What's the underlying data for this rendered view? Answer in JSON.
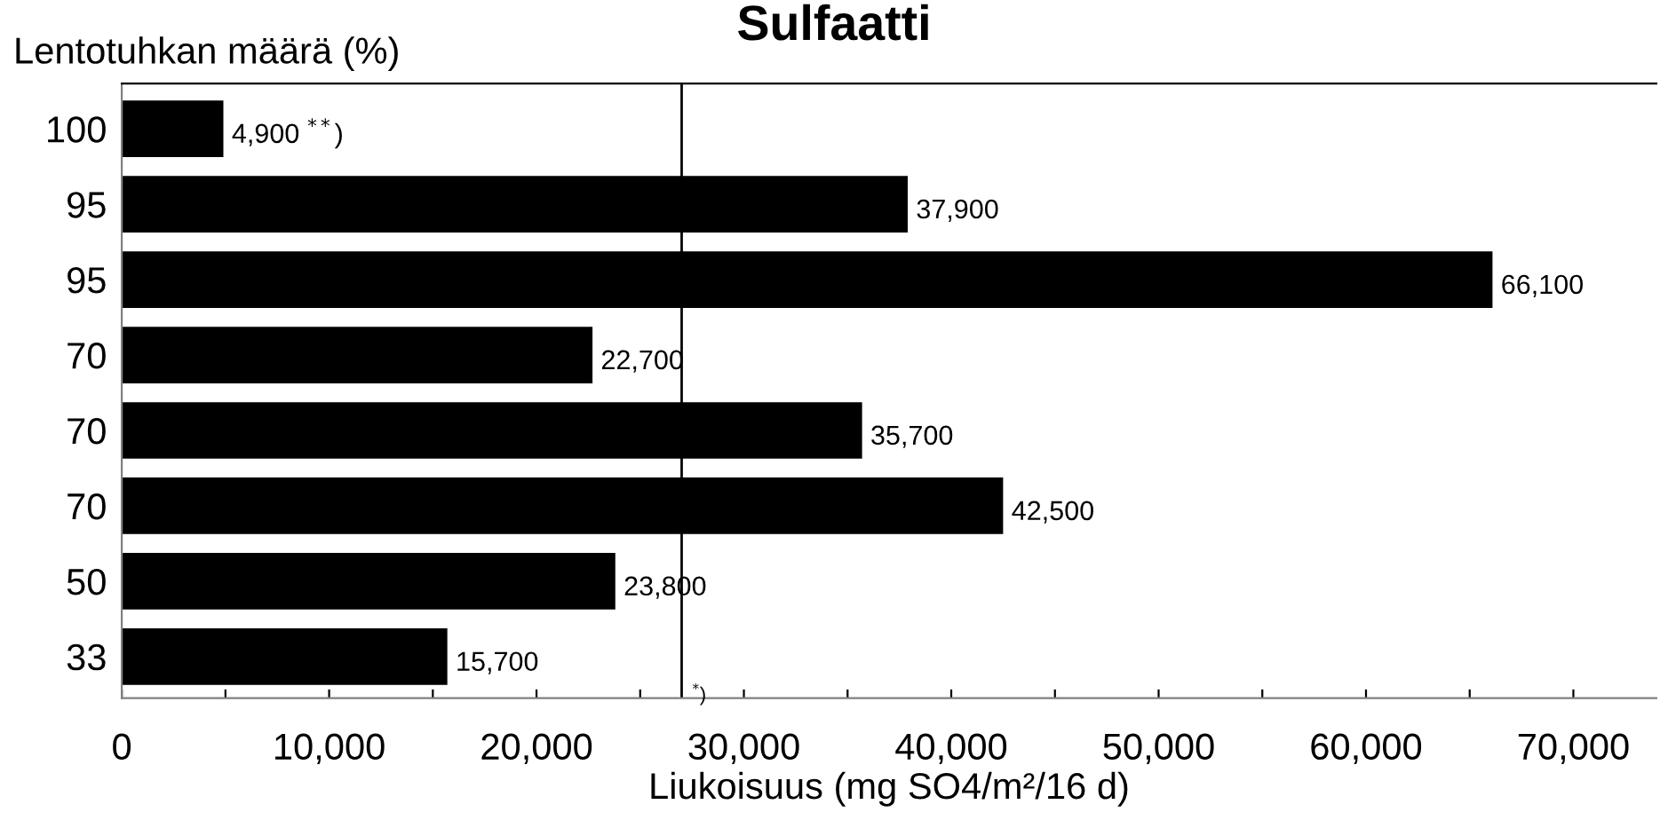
{
  "chart_data": {
    "type": "bar",
    "orientation": "horizontal",
    "title": "Sulfaatti",
    "ylabel": "Lentotuhkan määrä (%)",
    "xlabel": "Liukoisuus (mg SO4/m²/16 d)",
    "categories": [
      "100",
      "95",
      "95",
      "70",
      "70",
      "70",
      "50",
      "33"
    ],
    "values": [
      4900,
      37900,
      66100,
      22700,
      35700,
      42500,
      23800,
      15700
    ],
    "value_labels": [
      "4,900 $^{**}$)",
      "37,900",
      "66,100",
      "22,700",
      "35,700",
      "42,500",
      "23,800",
      "15,700"
    ],
    "color": "#000000",
    "xlim": [
      0,
      74000
    ],
    "xticks": [
      {
        "value": 0,
        "label": "0"
      },
      {
        "value": 5000,
        "label": null
      },
      {
        "value": 10000,
        "label": "10,000"
      },
      {
        "value": 15000,
        "label": null
      },
      {
        "value": 20000,
        "label": "20,000"
      },
      {
        "value": 25000,
        "label": null
      },
      {
        "value": 30000,
        "label": "30,000"
      },
      {
        "value": 35000,
        "label": null
      },
      {
        "value": 40000,
        "label": "40,000"
      },
      {
        "value": 45000,
        "label": null
      },
      {
        "value": 50000,
        "label": "50,000"
      },
      {
        "value": 55000,
        "label": null
      },
      {
        "value": 60000,
        "label": "60,000"
      },
      {
        "value": 65000,
        "label": null
      },
      {
        "value": 70000,
        "label": "70,000"
      }
    ],
    "ref_lines": [
      {
        "axis": "x",
        "value": 27000,
        "label": "$^{*}$)",
        "color": "#000000"
      }
    ],
    "grid": false,
    "legend": false
  }
}
